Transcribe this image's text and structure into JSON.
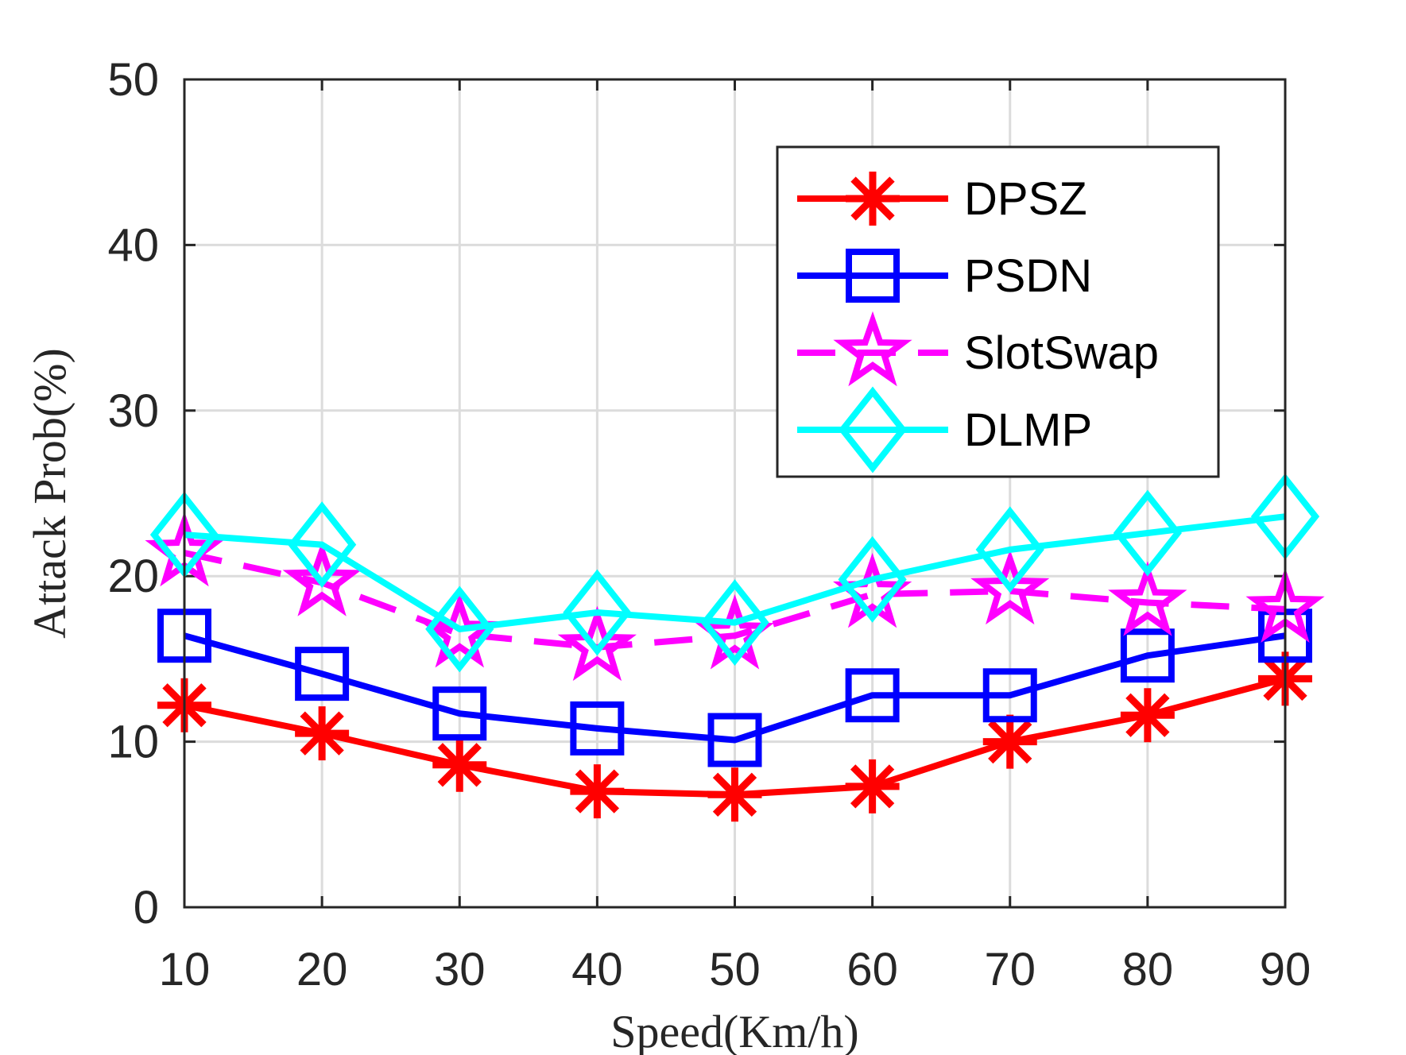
{
  "chart_data": {
    "type": "line",
    "title": "",
    "xlabel": "Speed(Km/h)",
    "ylabel": "Attack Prob(%)",
    "x": [
      10,
      20,
      30,
      40,
      50,
      60,
      70,
      80,
      90
    ],
    "xlim": [
      10,
      90
    ],
    "ylim": [
      0,
      50
    ],
    "xticks": [
      "10",
      "20",
      "30",
      "40",
      "50",
      "60",
      "70",
      "80",
      "90"
    ],
    "yticks": [
      "0",
      "10",
      "20",
      "30",
      "40",
      "50"
    ],
    "grid": true,
    "legend_position": "top-right",
    "series": [
      {
        "name": "DPSZ",
        "color": "#ff0000",
        "marker": "asterisk",
        "line_style": "solid",
        "values": [
          12.2,
          10.5,
          8.6,
          7.0,
          6.8,
          7.3,
          10.0,
          11.6,
          13.8
        ]
      },
      {
        "name": "PSDN",
        "color": "#0000ff",
        "marker": "square",
        "line_style": "solid",
        "values": [
          16.4,
          14.1,
          11.7,
          10.8,
          10.1,
          12.8,
          12.8,
          15.2,
          16.4
        ]
      },
      {
        "name": "SlotSwap",
        "color": "#ff00ff",
        "marker": "pentagram",
        "line_style": "dashed",
        "values": [
          21.4,
          19.6,
          16.5,
          15.7,
          16.4,
          18.9,
          19.1,
          18.4,
          18.0
        ]
      },
      {
        "name": "DLMP",
        "color": "#00ffff",
        "marker": "diamond",
        "line_style": "solid",
        "values": [
          22.5,
          21.9,
          16.8,
          17.8,
          17.2,
          19.8,
          21.6,
          22.6,
          23.6
        ]
      }
    ]
  }
}
